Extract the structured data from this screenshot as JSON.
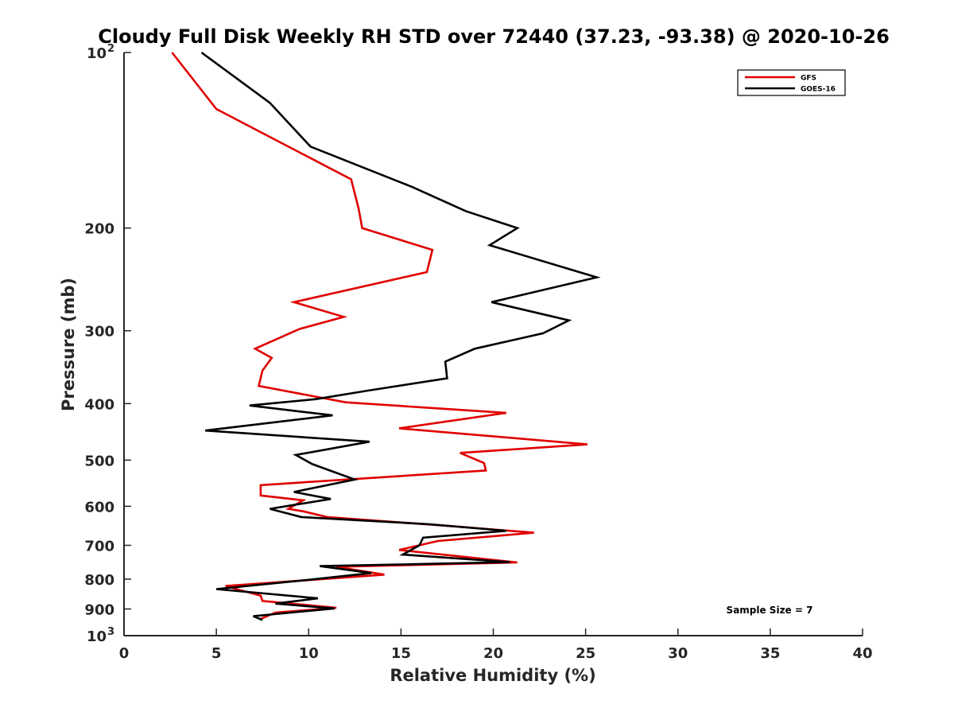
{
  "chart_data": {
    "type": "line",
    "title": "Cloudy Full Disk Weekly RH STD over 72440 (37.23, -93.38) @ 2020-10-26",
    "xlabel": "Relative Humidity (%)",
    "ylabel": "Pressure (mb)",
    "xlim": [
      0,
      40
    ],
    "ylim": [
      1000,
      100
    ],
    "yscale": "log",
    "x_ticks": [
      0,
      5,
      10,
      15,
      20,
      25,
      30,
      35,
      40
    ],
    "y_ticks": [
      {
        "value": 100,
        "label": "10",
        "exp": "2"
      },
      {
        "value": 200,
        "label": "200"
      },
      {
        "value": 300,
        "label": "300"
      },
      {
        "value": 400,
        "label": "400"
      },
      {
        "value": 500,
        "label": "500"
      },
      {
        "value": 600,
        "label": "600"
      },
      {
        "value": 700,
        "label": "700"
      },
      {
        "value": 800,
        "label": "800"
      },
      {
        "value": 900,
        "label": "900"
      },
      {
        "value": 1000,
        "label": "10",
        "exp": "3"
      }
    ],
    "grid": false,
    "legend_position": "top-right",
    "annotation": "Sample Size = 7",
    "series": [
      {
        "name": "GFS",
        "color": "#e00000",
        "points": [
          [
            2.6,
            100
          ],
          [
            5.0,
            125
          ],
          [
            12.3,
            165
          ],
          [
            12.7,
            185
          ],
          [
            12.9,
            200
          ],
          [
            16.7,
            218
          ],
          [
            16.4,
            238
          ],
          [
            9.2,
            268
          ],
          [
            11.9,
            284
          ],
          [
            9.5,
            298
          ],
          [
            7.1,
            322
          ],
          [
            8.0,
            334
          ],
          [
            7.5,
            351
          ],
          [
            7.3,
            373
          ],
          [
            12.0,
            398
          ],
          [
            20.7,
            415
          ],
          [
            14.9,
            441
          ],
          [
            25.1,
            470
          ],
          [
            18.2,
            486
          ],
          [
            19.5,
            506
          ],
          [
            19.6,
            521
          ],
          [
            7.4,
            552
          ],
          [
            7.4,
            575
          ],
          [
            9.7,
            586
          ],
          [
            8.9,
            606
          ],
          [
            9.7,
            612
          ],
          [
            11.0,
            626
          ],
          [
            17.8,
            649
          ],
          [
            22.2,
            666
          ],
          [
            17.0,
            688
          ],
          [
            14.9,
            713
          ],
          [
            21.3,
            749
          ],
          [
            11.5,
            762
          ],
          [
            14.1,
            786
          ],
          [
            5.5,
            822
          ],
          [
            7.4,
            854
          ],
          [
            7.5,
            872
          ],
          [
            11.5,
            896
          ],
          [
            8.2,
            913
          ],
          [
            7.4,
            936
          ]
        ]
      },
      {
        "name": "GOES-16",
        "color": "#000000",
        "points": [
          [
            4.2,
            100
          ],
          [
            7.9,
            122
          ],
          [
            10.1,
            145
          ],
          [
            15.6,
            170
          ],
          [
            18.5,
            187
          ],
          [
            21.3,
            200
          ],
          [
            19.8,
            214
          ],
          [
            25.6,
            243
          ],
          [
            19.9,
            268
          ],
          [
            24.1,
            288
          ],
          [
            22.7,
            303
          ],
          [
            19.0,
            322
          ],
          [
            17.4,
            339
          ],
          [
            17.5,
            362
          ],
          [
            13.2,
            380
          ],
          [
            10.4,
            393
          ],
          [
            6.8,
            403
          ],
          [
            11.3,
            419
          ],
          [
            4.4,
            445
          ],
          [
            13.3,
            465
          ],
          [
            9.3,
            490
          ],
          [
            10.2,
            508
          ],
          [
            12.5,
            540
          ],
          [
            9.2,
            567
          ],
          [
            11.2,
            583
          ],
          [
            7.9,
            606
          ],
          [
            9.6,
            626
          ],
          [
            16.5,
            644
          ],
          [
            20.7,
            661
          ],
          [
            16.2,
            679
          ],
          [
            16.0,
            700
          ],
          [
            15.1,
            726
          ],
          [
            20.9,
            748
          ],
          [
            10.6,
            760
          ],
          [
            13.4,
            781
          ],
          [
            10.0,
            802
          ],
          [
            5.0,
            832
          ],
          [
            10.5,
            863
          ],
          [
            8.2,
            881
          ],
          [
            11.4,
            898
          ],
          [
            7.0,
            926
          ],
          [
            7.5,
            940
          ]
        ]
      }
    ]
  }
}
